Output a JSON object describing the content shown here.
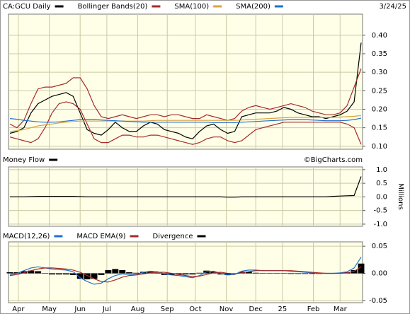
{
  "chart_data": {
    "type": "multi-panel",
    "date": "3/24/25",
    "x": [
      0,
      5,
      10,
      15,
      20,
      25,
      30,
      35,
      40,
      45,
      50,
      55,
      60,
      65,
      70,
      75,
      80,
      85,
      90,
      95,
      100,
      105,
      110,
      115,
      120,
      125,
      130,
      135,
      140,
      145,
      150,
      155,
      160,
      165,
      170,
      175,
      180,
      185,
      190,
      195,
      200,
      205,
      210,
      215,
      220,
      225,
      230,
      235,
      240,
      245,
      250
    ],
    "xlim": [
      -1,
      251
    ],
    "xticks": [
      {
        "value": 6,
        "label": "Apr"
      },
      {
        "value": 28,
        "label": "May"
      },
      {
        "value": 50,
        "label": "Jun"
      },
      {
        "value": 69,
        "label": "Jul"
      },
      {
        "value": 91,
        "label": "Aug"
      },
      {
        "value": 112,
        "label": "Sep"
      },
      {
        "value": 132,
        "label": "Oct"
      },
      {
        "value": 154,
        "label": "Nov"
      },
      {
        "value": 175,
        "label": "Dec"
      },
      {
        "value": 194,
        "label": "25"
      },
      {
        "value": 216,
        "label": "Feb"
      },
      {
        "value": 235,
        "label": "Mar"
      }
    ],
    "grid": true,
    "panels": [
      {
        "type": "line",
        "ylim": [
          0.092,
          0.457
        ],
        "yticks": [
          {
            "value": 0.1,
            "label": "0.10"
          },
          {
            "value": 0.15,
            "label": "0.15"
          },
          {
            "value": 0.2,
            "label": "0.20"
          },
          {
            "value": 0.25,
            "label": "0.25"
          },
          {
            "value": 0.3,
            "label": "0.30"
          },
          {
            "value": 0.35,
            "label": "0.35"
          },
          {
            "value": 0.4,
            "label": "0.40"
          }
        ],
        "series": [
          {
            "name": "CA:GCU Daily",
            "color": "#000000",
            "values": [
              0.135,
              0.14,
              0.15,
              0.19,
              0.215,
              0.225,
              0.235,
              0.24,
              0.245,
              0.235,
              0.19,
              0.145,
              0.135,
              0.13,
              0.145,
              0.165,
              0.15,
              0.14,
              0.14,
              0.155,
              0.165,
              0.16,
              0.145,
              0.14,
              0.135,
              0.125,
              0.12,
              0.14,
              0.155,
              0.16,
              0.145,
              0.135,
              0.14,
              0.18,
              0.185,
              0.19,
              0.19,
              0.19,
              0.195,
              0.205,
              0.2,
              0.19,
              0.185,
              0.18,
              0.18,
              0.175,
              0.18,
              0.185,
              0.195,
              0.22,
              0.38
            ]
          },
          {
            "name": "Bollinger Bands(20)",
            "color": "#a52a2a",
            "style": "band",
            "upper": [
              0.16,
              0.15,
              0.17,
              0.215,
              0.255,
              0.26,
              0.26,
              0.265,
              0.27,
              0.285,
              0.285,
              0.255,
              0.21,
              0.18,
              0.175,
              0.18,
              0.185,
              0.18,
              0.175,
              0.18,
              0.185,
              0.185,
              0.18,
              0.185,
              0.185,
              0.18,
              0.175,
              0.175,
              0.185,
              0.18,
              0.175,
              0.17,
              0.175,
              0.195,
              0.205,
              0.21,
              0.205,
              0.2,
              0.205,
              0.21,
              0.215,
              0.21,
              0.205,
              0.195,
              0.19,
              0.185,
              0.185,
              0.19,
              0.21,
              0.26,
              0.31
            ],
            "lower": [
              0.125,
              0.12,
              0.115,
              0.11,
              0.12,
              0.15,
              0.19,
              0.215,
              0.22,
              0.215,
              0.2,
              0.16,
              0.12,
              0.11,
              0.11,
              0.12,
              0.13,
              0.13,
              0.125,
              0.125,
              0.13,
              0.13,
              0.125,
              0.12,
              0.115,
              0.11,
              0.105,
              0.11,
              0.12,
              0.125,
              0.125,
              0.115,
              0.11,
              0.115,
              0.13,
              0.145,
              0.15,
              0.155,
              0.16,
              0.165,
              0.165,
              0.165,
              0.165,
              0.165,
              0.165,
              0.165,
              0.165,
              0.165,
              0.16,
              0.15,
              0.105
            ]
          },
          {
            "name": "SMA(100)",
            "color": "#d9a441",
            "values": [
              0.14,
              0.142,
              0.145,
              0.15,
              0.155,
              0.158,
              0.16,
              0.163,
              0.165,
              0.167,
              0.168,
              0.168,
              0.168,
              0.168,
              0.168,
              0.168,
              0.168,
              0.168,
              0.168,
              0.168,
              0.169,
              0.17,
              0.17,
              0.17,
              0.17,
              0.17,
              0.17,
              0.17,
              0.17,
              0.17,
              0.17,
              0.17,
              0.17,
              0.171,
              0.172,
              0.173,
              0.174,
              0.175,
              0.176,
              0.177,
              0.178,
              0.178,
              0.178,
              0.178,
              0.178,
              0.178,
              0.178,
              0.179,
              0.18,
              0.181,
              0.183
            ]
          },
          {
            "name": "SMA(200)",
            "color": "#1f6fd0",
            "values": [
              0.175,
              0.173,
              0.17,
              0.168,
              0.166,
              0.165,
              0.165,
              0.166,
              0.168,
              0.17,
              0.172,
              0.172,
              0.172,
              0.171,
              0.17,
              0.169,
              0.168,
              0.167,
              0.166,
              0.165,
              0.165,
              0.165,
              0.165,
              0.165,
              0.165,
              0.165,
              0.165,
              0.165,
              0.165,
              0.164,
              0.164,
              0.164,
              0.164,
              0.165,
              0.166,
              0.167,
              0.168,
              0.169,
              0.17,
              0.171,
              0.172,
              0.172,
              0.172,
              0.171,
              0.17,
              0.169,
              0.169,
              0.169,
              0.17,
              0.172,
              0.176
            ]
          }
        ]
      },
      {
        "type": "line",
        "annotation": "©BigCharts.com",
        "unit_label": "Millions",
        "ylim": [
          -1.08,
          1.1
        ],
        "yticks": [
          {
            "value": 1,
            "label": "1.0"
          },
          {
            "value": 0.5,
            "label": "0.5"
          },
          {
            "value": 0,
            "label": "0.0"
          },
          {
            "value": -0.5,
            "label": "-0.5"
          },
          {
            "value": -1,
            "label": "-1.0"
          }
        ],
        "series": [
          {
            "name": "Money Flow",
            "color": "#000000",
            "values": [
              0,
              0,
              0,
              0.01,
              0.02,
              0.02,
              0.02,
              0.02,
              0.02,
              0.02,
              0.01,
              0,
              0,
              0,
              0,
              0,
              0,
              0,
              0,
              0,
              0,
              0,
              0,
              0,
              0,
              0,
              0,
              0,
              0,
              0,
              0,
              -0.01,
              -0.01,
              0,
              0,
              0,
              0,
              0,
              0,
              0,
              0,
              0,
              0,
              0,
              0,
              0,
              0.02,
              0.03,
              0.04,
              0.05,
              0.75
            ]
          }
        ]
      },
      {
        "type": "line",
        "ylim": [
          -0.054,
          0.058
        ],
        "yticks": [
          {
            "value": 0.05,
            "label": "0.05"
          },
          {
            "value": 0,
            "label": "0.00"
          },
          {
            "value": -0.05,
            "label": "-0.05"
          }
        ],
        "series": [
          {
            "name": "MACD(12,26)",
            "color": "#1f6fd0",
            "values": [
              -0.002,
              0,
              0.005,
              0.01,
              0.012,
              0.01,
              0.008,
              0.007,
              0.006,
              0.003,
              -0.008,
              -0.015,
              -0.02,
              -0.018,
              -0.01,
              -0.004,
              -0.001,
              -0.002,
              -0.002,
              0.002,
              0.004,
              0.003,
              -0.001,
              -0.003,
              -0.004,
              -0.006,
              -0.008,
              -0.004,
              0.003,
              0.004,
              0,
              -0.003,
              -0.002,
              0.004,
              0.006,
              0.006,
              0.005,
              0.005,
              0.005,
              0.005,
              0.004,
              0.003,
              0.002,
              0.001,
              0,
              0,
              0,
              0.001,
              0.003,
              0.01,
              0.03
            ]
          },
          {
            "name": "MACD EMA(9)",
            "color": "#a52a2a",
            "values": [
              -0.004,
              -0.002,
              0.001,
              0.005,
              0.008,
              0.01,
              0.01,
              0.009,
              0.008,
              0.006,
              0.002,
              -0.004,
              -0.01,
              -0.015,
              -0.016,
              -0.012,
              -0.007,
              -0.004,
              -0.003,
              -0.001,
              0.001,
              0.002,
              0.002,
              0,
              -0.002,
              -0.004,
              -0.006,
              -0.005,
              -0.002,
              0.001,
              0.002,
              0,
              -0.001,
              0.001,
              0.003,
              0.005,
              0.005,
              0.005,
              0.005,
              0.005,
              0.005,
              0.004,
              0.003,
              0.002,
              0.001,
              0,
              0,
              0,
              0.001,
              0.004,
              0.012
            ]
          },
          {
            "name": "Divergence",
            "color": "#000000",
            "style": "bar",
            "values": [
              0.002,
              0.002,
              0.004,
              0.005,
              0.004,
              0,
              -0.002,
              -0.002,
              -0.002,
              -0.003,
              -0.01,
              -0.011,
              -0.01,
              -0.003,
              0.006,
              0.008,
              0.006,
              0.002,
              0.001,
              0.003,
              0.003,
              0.001,
              -0.003,
              -0.003,
              -0.002,
              -0.002,
              -0.002,
              0.001,
              0.005,
              0.003,
              -0.002,
              -0.003,
              -0.001,
              0.003,
              0.003,
              0.001,
              0,
              0,
              0,
              0,
              -0.001,
              -0.001,
              -0.001,
              -0.001,
              -0.001,
              0,
              0,
              0.001,
              0.002,
              0.006,
              0.018
            ]
          }
        ]
      }
    ]
  }
}
